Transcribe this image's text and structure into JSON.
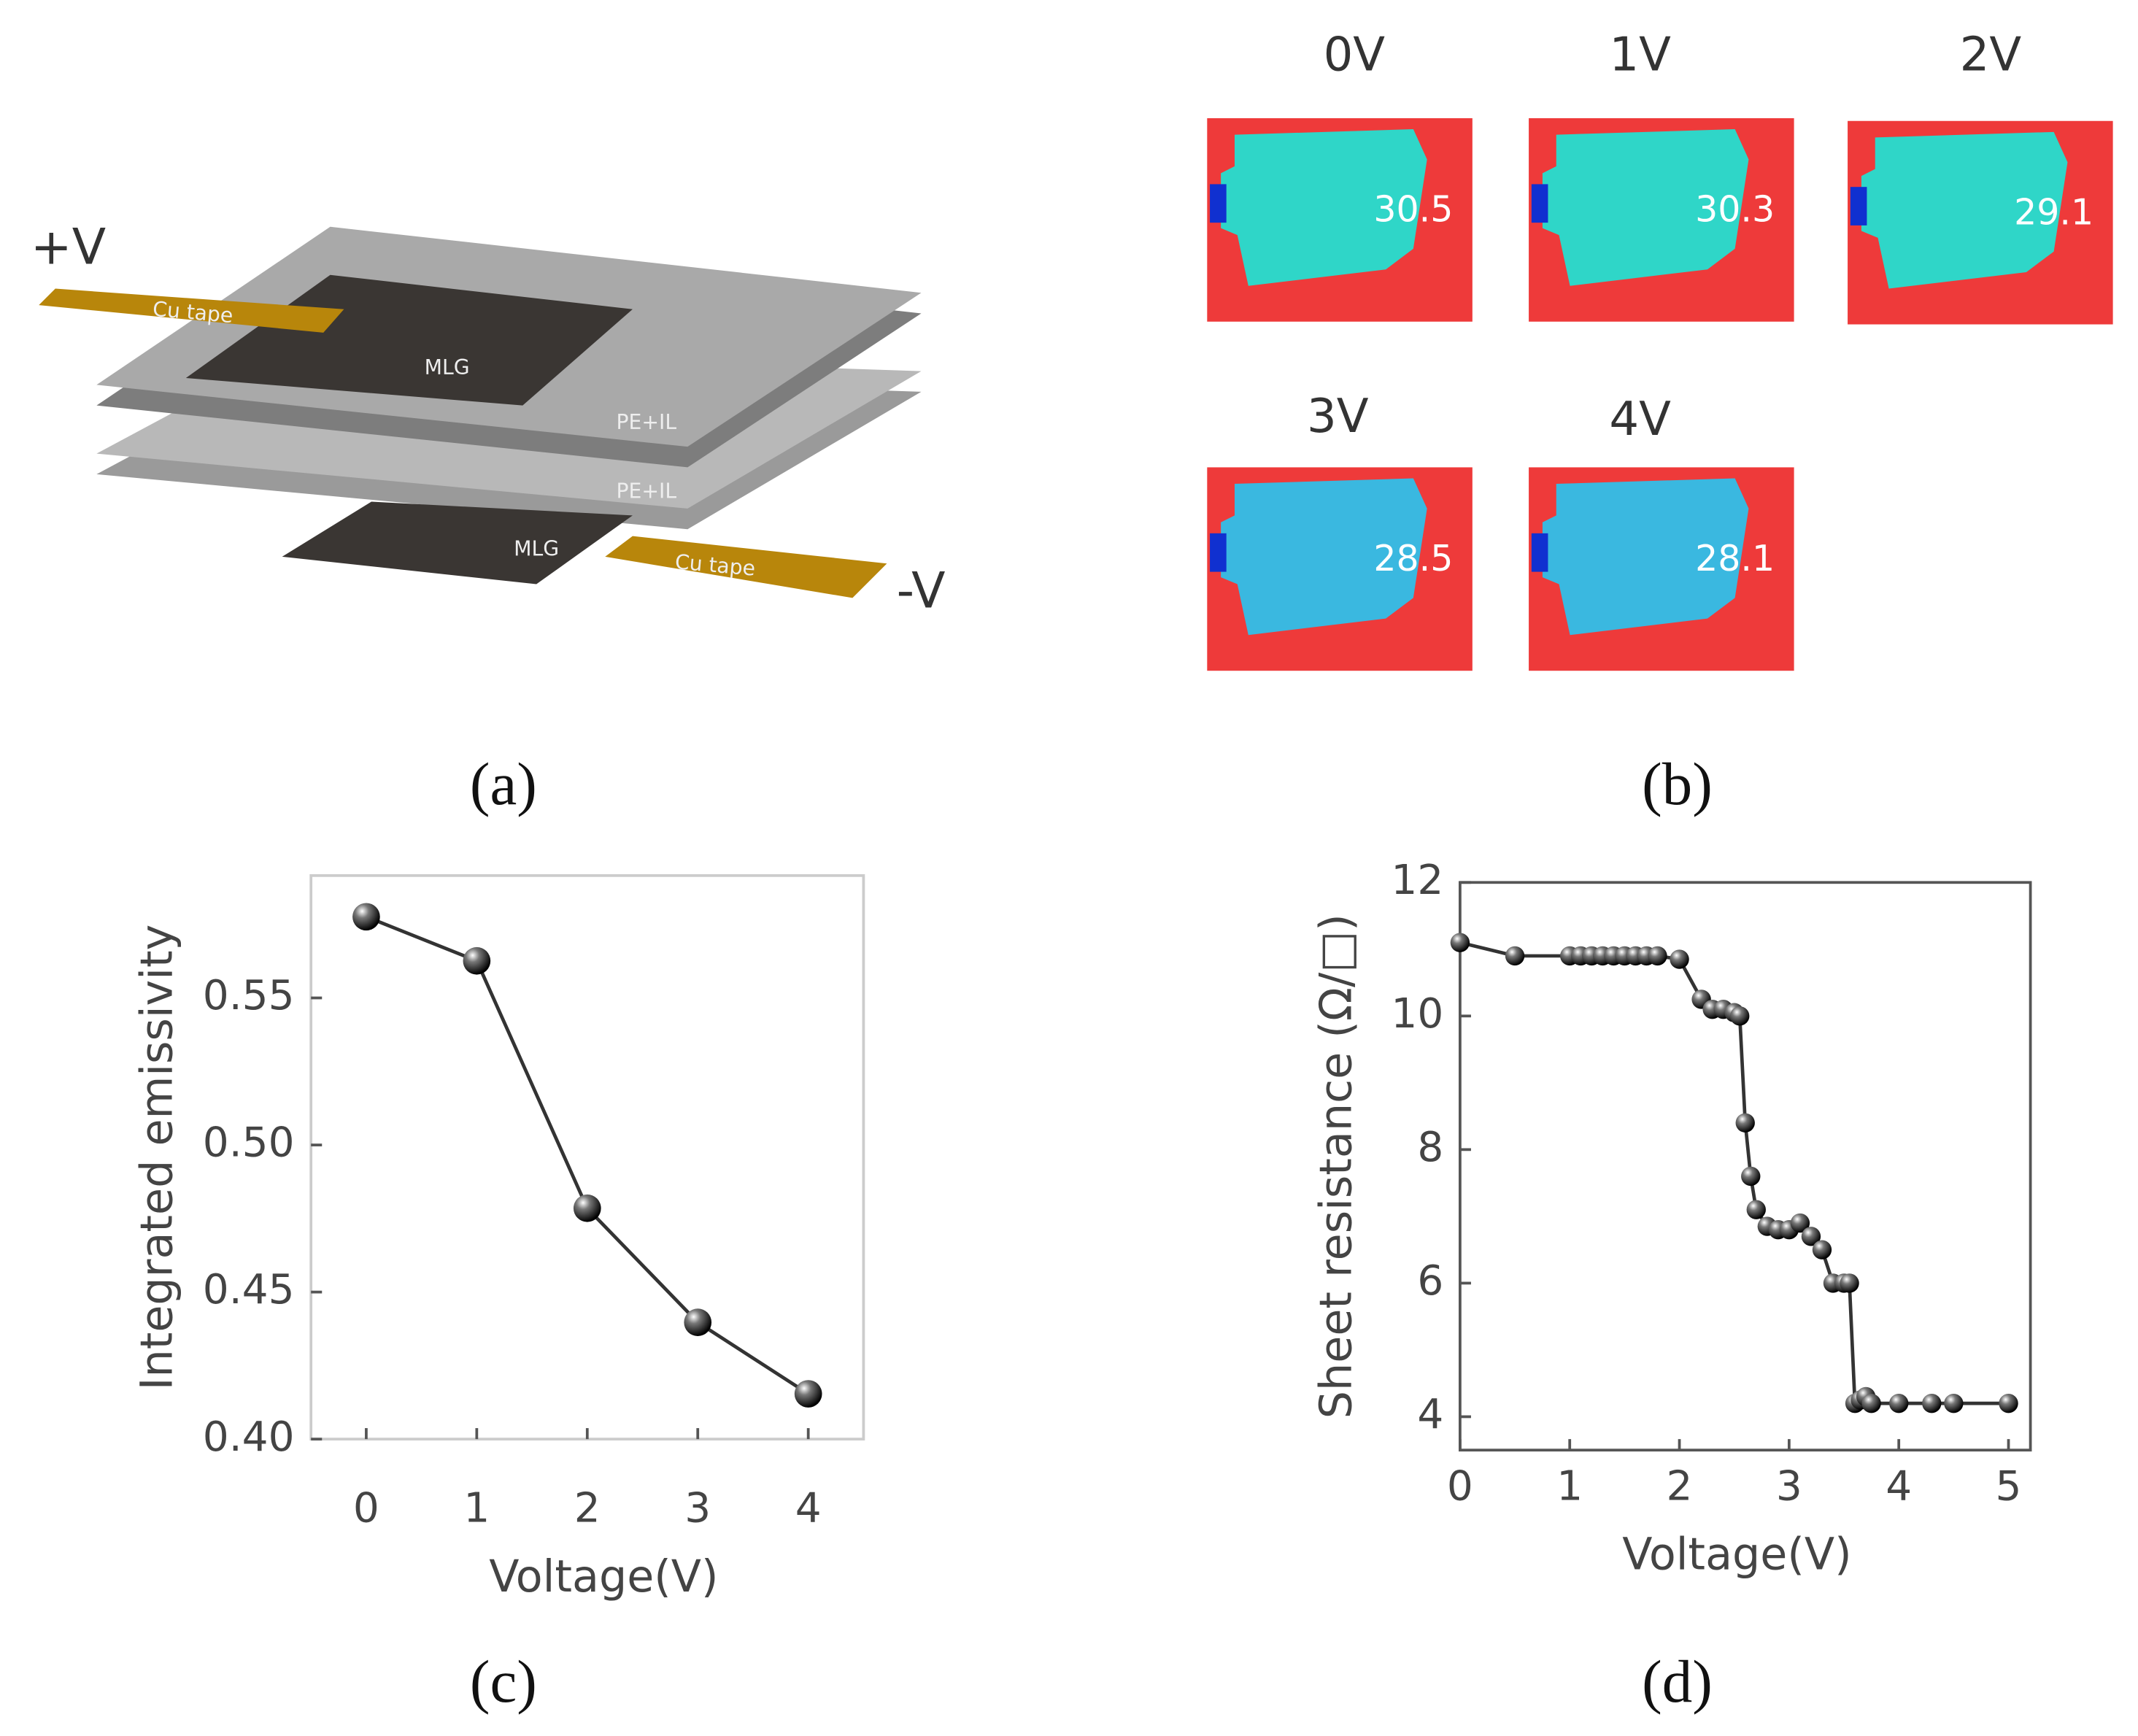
{
  "diagram": {
    "labels": [
      "+V",
      "Cu tape",
      "MLG",
      "PE+IL",
      "PE+IL",
      "MLG",
      "Cu tape",
      "-V"
    ],
    "caption": "(a)"
  },
  "thermal": {
    "images": [
      {
        "label": "0V",
        "temp": "30.5"
      },
      {
        "label": "1V",
        "temp": "30.3"
      },
      {
        "label": "2V",
        "temp": "29.1"
      },
      {
        "label": "3V",
        "temp": "28.5"
      },
      {
        "label": "4V",
        "temp": "28.1"
      }
    ],
    "caption": "(b)"
  },
  "chart_data": [
    {
      "type": "line",
      "caption": "(c)",
      "x_label": "Voltage(V)",
      "y_label": "Integrated emissivity",
      "x": [
        0,
        1,
        2,
        3,
        4
      ],
      "values": [
        0.5776,
        0.5626,
        0.4785,
        0.4397,
        0.4154
      ],
      "color": "#333333",
      "xlim": [
        -0.5,
        4.5
      ],
      "ylim": [
        0.4,
        0.5916
      ],
      "xticks": [
        0,
        1,
        2,
        3,
        4
      ],
      "yticks": [
        {
          "value": 0.4,
          "label": "0.40"
        },
        0.45,
        {
          "value": 0.5,
          "label": "0.50"
        },
        0.55
      ]
    },
    {
      "type": "line",
      "caption": "(d)",
      "x_label": "Voltage(V)",
      "y_label": "Sheet resistance (Ω/□)",
      "x": [
        0,
        0.5,
        1.0,
        1.1,
        1.2,
        1.3,
        1.4,
        1.5,
        1.6,
        1.7,
        1.8,
        2.0,
        2.2,
        2.3,
        2.4,
        2.5,
        2.55,
        2.6,
        2.65,
        2.7,
        2.8,
        2.9,
        3.0,
        3.1,
        3.2,
        3.3,
        3.4,
        3.5,
        3.55,
        3.6,
        3.65,
        3.7,
        3.75,
        4.0,
        4.3,
        4.5,
        5.0
      ],
      "values": [
        11.1,
        10.9,
        10.9,
        10.9,
        10.9,
        10.9,
        10.9,
        10.9,
        10.9,
        10.9,
        10.9,
        10.85,
        10.25,
        10.1,
        10.1,
        10.05,
        10.0,
        8.4,
        7.6,
        7.1,
        6.85,
        6.8,
        6.8,
        6.9,
        6.7,
        6.5,
        6.0,
        6.0,
        6.0,
        4.2,
        4.25,
        4.3,
        4.2,
        4.2,
        4.2,
        4.2,
        4.2
      ],
      "color": "#333333",
      "xlim": [
        0,
        5.2
      ],
      "ylim": [
        3.5,
        12
      ],
      "xticks": [
        0,
        1,
        2,
        3,
        4,
        5
      ],
      "yticks": [
        4,
        6,
        8,
        10,
        12
      ]
    }
  ]
}
